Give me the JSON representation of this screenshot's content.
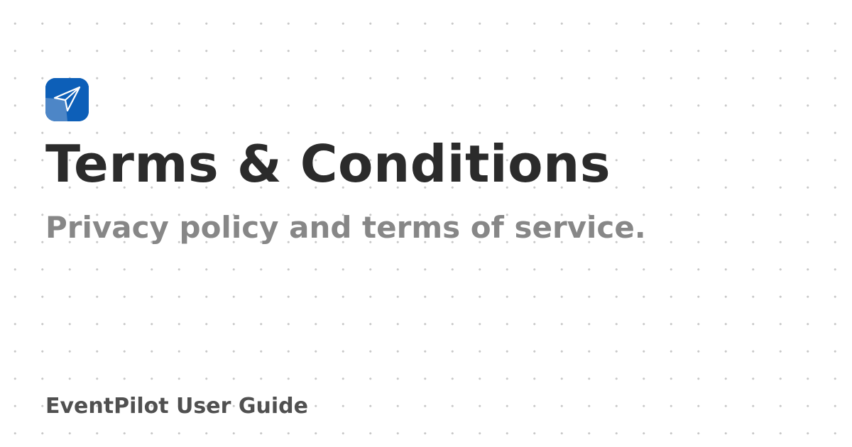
{
  "page": {
    "title": "Terms & Conditions",
    "subtitle": "Privacy policy and terms of service.",
    "footer": "EventPilot User Guide"
  },
  "logo": {
    "icon": "paper-plane-icon"
  },
  "colors": {
    "logo_bg": "#0d5fb8",
    "title": "#2b2b2b",
    "subtitle": "#878787",
    "footer": "#505050",
    "dots": "#c8c8c8",
    "background": "#ffffff"
  }
}
